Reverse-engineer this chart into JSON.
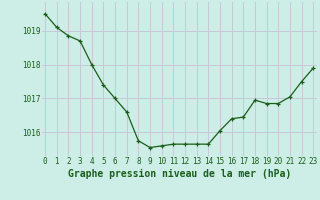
{
  "x": [
    0,
    1,
    2,
    3,
    4,
    5,
    6,
    7,
    8,
    9,
    10,
    11,
    12,
    13,
    14,
    15,
    16,
    17,
    18,
    19,
    20,
    21,
    22,
    23
  ],
  "y": [
    1019.5,
    1019.1,
    1018.85,
    1018.7,
    1018.0,
    1017.4,
    1017.0,
    1016.6,
    1015.75,
    1015.55,
    1015.6,
    1015.65,
    1015.65,
    1015.65,
    1015.65,
    1016.05,
    1016.4,
    1016.45,
    1016.95,
    1016.85,
    1016.85,
    1017.05,
    1017.5,
    1017.9
  ],
  "line_color": "#1a5e1a",
  "marker_color": "#1a5e1a",
  "bg_color": "#cceee6",
  "grid_color": "#c8c8d8",
  "axis_label_color": "#1a5e1a",
  "xlabel": "Graphe pression niveau de la mer (hPa)",
  "ylim_min": 1015.3,
  "ylim_max": 1019.85,
  "yticks": [
    1016,
    1017,
    1018,
    1019
  ],
  "xticks": [
    0,
    1,
    2,
    3,
    4,
    5,
    6,
    7,
    8,
    9,
    10,
    11,
    12,
    13,
    14,
    15,
    16,
    17,
    18,
    19,
    20,
    21,
    22,
    23
  ],
  "xtick_labels": [
    "0",
    "1",
    "2",
    "3",
    "4",
    "5",
    "6",
    "7",
    "8",
    "9",
    "10",
    "11",
    "12",
    "13",
    "14",
    "15",
    "16",
    "17",
    "18",
    "19",
    "20",
    "21",
    "22",
    "23"
  ],
  "title_fontsize": 7.0,
  "tick_fontsize": 5.5
}
